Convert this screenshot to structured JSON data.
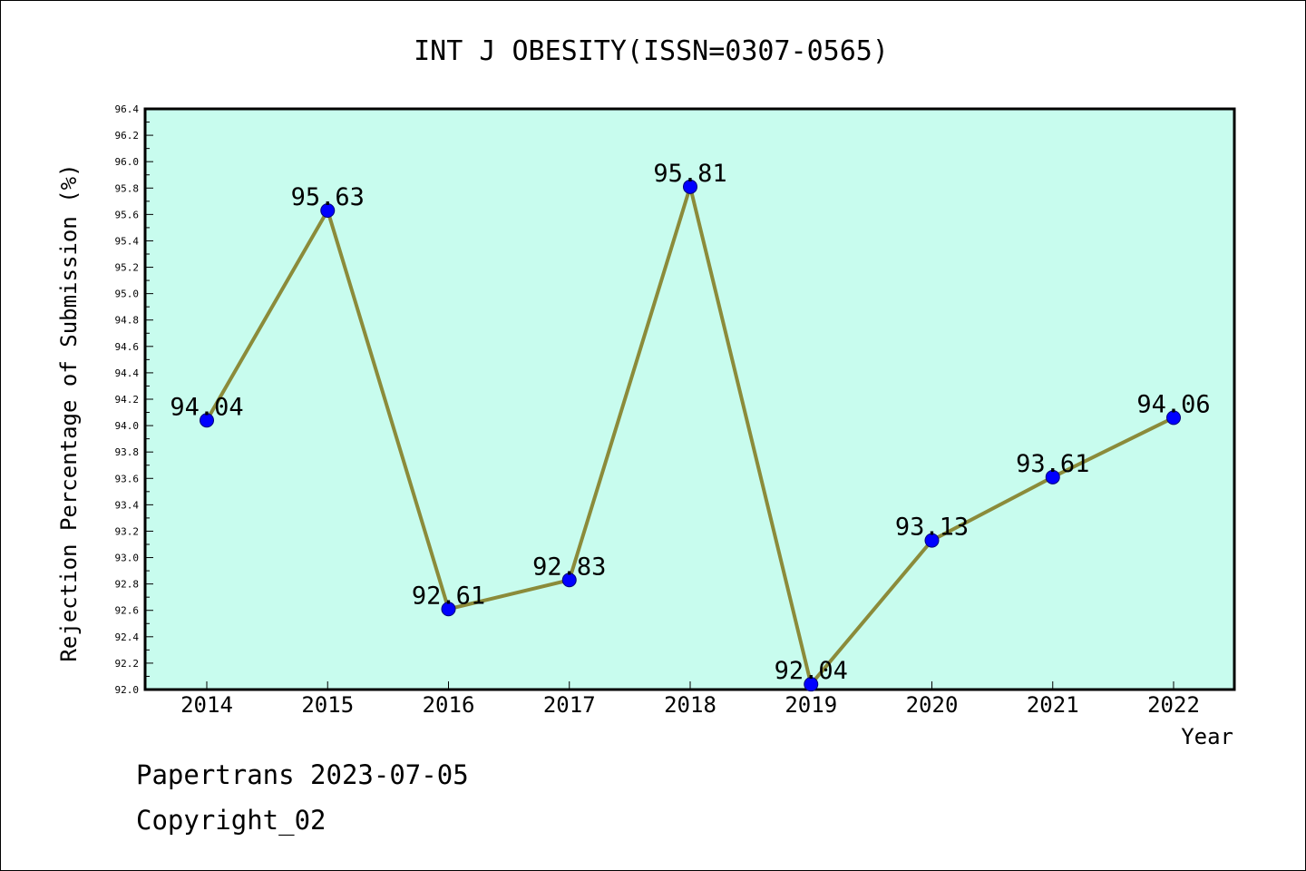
{
  "chart_data": {
    "type": "line",
    "title": "INT J OBESITY(ISSN=0307-0565)",
    "xlabel": "Year",
    "ylabel": "Rejection Percentage of Submission (%)",
    "categories": [
      "2014",
      "2015",
      "2016",
      "2017",
      "2018",
      "2019",
      "2020",
      "2021",
      "2022"
    ],
    "values": [
      94.04,
      95.63,
      92.61,
      92.83,
      95.81,
      92.04,
      93.13,
      93.61,
      94.06
    ],
    "data_labels": [
      "94.04",
      "95.63",
      "92.61",
      "92.83",
      "95.81",
      "92.04",
      "93.13",
      "93.61",
      "94.06"
    ],
    "ylim": [
      92.0,
      96.4
    ],
    "yticks": [
      "92.0",
      "92.2",
      "92.4",
      "92.6",
      "92.8",
      "93.0",
      "93.2",
      "93.4",
      "93.6",
      "93.8",
      "94.0",
      "94.2",
      "94.4",
      "94.6",
      "94.8",
      "95.0",
      "95.2",
      "95.4",
      "95.6",
      "95.8",
      "96.0",
      "96.2",
      "96.4"
    ],
    "grid": false,
    "legend": "none",
    "colors": {
      "plot_background": "#c8fcee",
      "line": "#8b8b3a",
      "marker": "#0000ff"
    }
  },
  "footer": {
    "line1": "Papertrans 2023-07-05",
    "line2": "Copyright_02"
  }
}
